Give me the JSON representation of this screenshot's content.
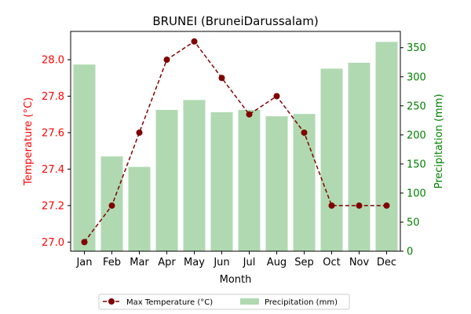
{
  "chart_data": {
    "type": "bar+line",
    "title": "BRUNEI (BruneiDarussalam)",
    "xlabel": "Month",
    "categories": [
      "Jan",
      "Feb",
      "Mar",
      "Apr",
      "May",
      "Jun",
      "Jul",
      "Aug",
      "Sep",
      "Oct",
      "Nov",
      "Dec"
    ],
    "left_axis": {
      "label": "Temperature (°C)",
      "ylim": [
        26.95,
        28.155
      ],
      "ticks": [
        27.0,
        27.2,
        27.4,
        27.6,
        27.8,
        28.0
      ],
      "tick_labels": [
        "27.0",
        "27.2",
        "27.4",
        "27.6",
        "27.8",
        "28.0"
      ],
      "color": "#ff0000"
    },
    "right_axis": {
      "label": "Precipitation (mm)",
      "ylim": [
        0,
        378
      ],
      "ticks": [
        0,
        50,
        100,
        150,
        200,
        250,
        300,
        350
      ],
      "tick_labels": [
        "0",
        "50",
        "100",
        "150",
        "200",
        "250",
        "300",
        "350"
      ],
      "color": "#008000"
    },
    "series": [
      {
        "name": "Max Temperature (°C)",
        "kind": "line",
        "axis": "left",
        "color": "#800000",
        "values": [
          27.0,
          27.2,
          27.6,
          28.0,
          28.1,
          27.9,
          27.7,
          27.8,
          27.6,
          27.2,
          27.2,
          27.2
        ]
      },
      {
        "name": "Precipitation (mm)",
        "kind": "bar",
        "axis": "right",
        "color": "#b0d9b1",
        "values": [
          321,
          163,
          145,
          243,
          260,
          239,
          243,
          232,
          236,
          314,
          324,
          360
        ]
      }
    ],
    "legend_position": "bottom-center",
    "grid": false
  }
}
